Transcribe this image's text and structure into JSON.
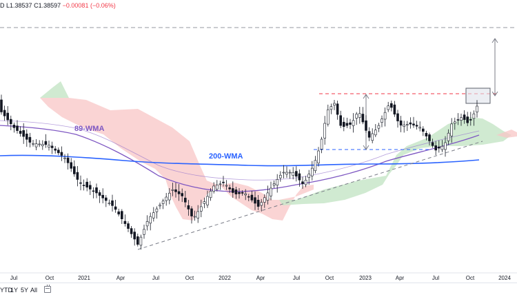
{
  "legend": {
    "ohlc_prefix": "D",
    "low_label": "L",
    "low_value": "1.38537",
    "close_label": "C",
    "close_value": "1.38597",
    "change": "−0.00081 (−0.06%)"
  },
  "annotations": {
    "wma89": "89-WMA",
    "wma200": "200-WMA"
  },
  "time_axis": {
    "labels": [
      "Jul",
      "Oct",
      "2021",
      "Apr",
      "Jul",
      "Oct",
      "2022",
      "Apr",
      "Jul",
      "Oct",
      "2023",
      "Apr",
      "Jul",
      "Oct",
      "2024"
    ]
  },
  "range_toolbar": {
    "items": [
      "YTD",
      "1Y",
      "5Y",
      "All"
    ],
    "calendar_icon": "calendar-icon"
  },
  "colors": {
    "wma89": "#7e57c2",
    "wma200": "#2962ff",
    "resistance": "#f23645",
    "support": "#2962ff",
    "cloud_bear": "#f8c6c6",
    "cloud_bull": "#c8e6c9",
    "candle": "#131722"
  }
}
